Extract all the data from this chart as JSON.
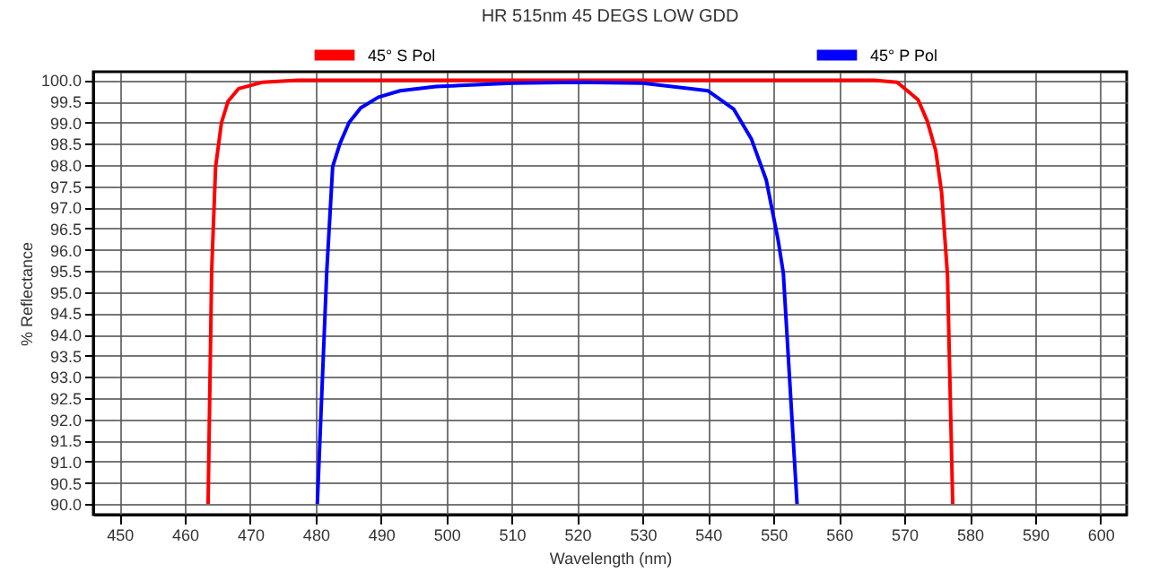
{
  "chart_data": {
    "type": "line",
    "title": "HR 515nm 45 DEGS LOW GDD",
    "xlabel": "Wavelength (nm)",
    "ylabel": "% Reflectance",
    "xlim": [
      446,
      604
    ],
    "ylim": [
      89.75,
      100.2
    ],
    "xticks": [
      450,
      460,
      470,
      480,
      490,
      500,
      510,
      520,
      530,
      540,
      550,
      560,
      570,
      580,
      590,
      600
    ],
    "yticks": [
      {
        "value": 90,
        "label": "90.0"
      },
      {
        "value": 90.5,
        "label": "90.5"
      },
      {
        "value": 91,
        "label": "91.0"
      },
      {
        "value": 91.5,
        "label": "91.5"
      },
      {
        "value": 92,
        "label": "92.0"
      },
      {
        "value": 92.5,
        "label": "92.5"
      },
      {
        "value": 93,
        "label": "93.0"
      },
      {
        "value": 93.5,
        "label": "93.5"
      },
      {
        "value": 94,
        "label": "94.0"
      },
      {
        "value": 94.5,
        "label": "94.5"
      },
      {
        "value": 95,
        "label": "95.0"
      },
      {
        "value": 95.5,
        "label": "95.5"
      },
      {
        "value": 96,
        "label": "96.0"
      },
      {
        "value": 96.5,
        "label": "96.5"
      },
      {
        "value": 97,
        "label": "97.0"
      },
      {
        "value": 97.5,
        "label": "97.5"
      },
      {
        "value": 98,
        "label": "98.0"
      },
      {
        "value": 98.5,
        "label": "98.5"
      },
      {
        "value": 99,
        "label": "99.0"
      },
      {
        "value": 99.5,
        "label": "99.5"
      },
      {
        "value": 100,
        "label": "100.0"
      }
    ],
    "grid": true,
    "legend": "top",
    "marker": "none",
    "line_style": "solid",
    "series": [
      {
        "name": "45° S Pol",
        "color": "#ff0000",
        "x": [
          463.55,
          464.1,
          464.7,
          465.6,
          466.6,
          468.2,
          471.8,
          477.3,
          500,
          530,
          560,
          565.4,
          568.9,
          572.1,
          573.5,
          574.8,
          575.7,
          576.6,
          577.4
        ],
        "values": [
          90.0,
          95.5,
          97.96,
          99.0,
          99.5,
          99.8,
          99.95,
          100.0,
          100.0,
          100.0,
          100.0,
          100.0,
          99.95,
          99.54,
          99.04,
          98.34,
          97.35,
          95.4,
          90.0
        ]
      },
      {
        "name": "45° P Pol",
        "color": "#0000ff",
        "x": [
          480.25,
          481.7,
          482.6,
          483.7,
          485.1,
          486.9,
          489.6,
          492.9,
          498.4,
          510,
          520,
          530,
          540,
          543.9,
          546.6,
          548.9,
          550.7,
          551.5,
          553.6
        ],
        "values": [
          90.0,
          95.5,
          97.96,
          98.5,
          99.0,
          99.35,
          99.6,
          99.75,
          99.85,
          99.93,
          99.95,
          99.93,
          99.75,
          99.32,
          98.62,
          97.64,
          96.23,
          95.45,
          90.0
        ]
      }
    ]
  }
}
